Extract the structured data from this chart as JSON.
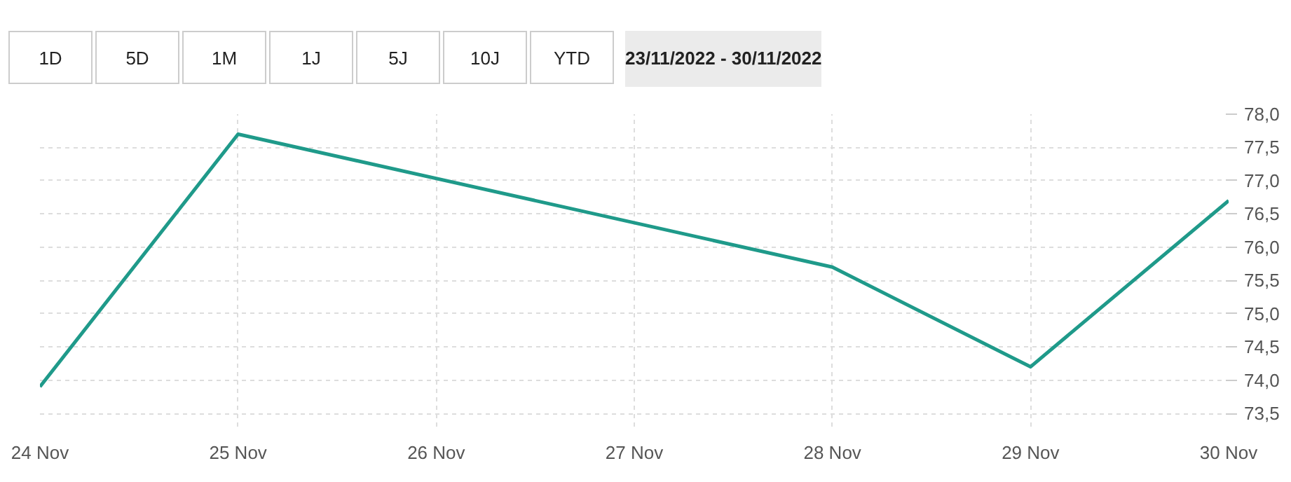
{
  "chart_data": {
    "type": "line",
    "x": [
      "2022-11-24",
      "2022-11-25",
      "2022-11-28",
      "2022-11-29",
      "2022-11-30"
    ],
    "series": [
      {
        "color": "#1f9a8a",
        "values": [
          73.9,
          77.7,
          75.7,
          74.2,
          76.7
        ]
      }
    ],
    "xlim": [
      "2022-11-24",
      "2022-11-30"
    ],
    "xticks": [
      {
        "value": "2022-11-24",
        "label": "24 Nov"
      },
      {
        "value": "2022-11-25",
        "label": "25 Nov"
      },
      {
        "value": "2022-11-26",
        "label": "26 Nov"
      },
      {
        "value": "2022-11-27",
        "label": "27 Nov"
      },
      {
        "value": "2022-11-28",
        "label": "28 Nov"
      },
      {
        "value": "2022-11-29",
        "label": "29 Nov"
      },
      {
        "value": "2022-11-30",
        "label": "30 Nov"
      }
    ],
    "ylim": [
      73.3,
      78.0
    ],
    "yticks": [
      {
        "value": 73.5,
        "label": "73,5"
      },
      {
        "value": 74.0,
        "label": "74,0"
      },
      {
        "value": 74.5,
        "label": "74,5"
      },
      {
        "value": 75.0,
        "label": "75,0"
      },
      {
        "value": 75.5,
        "label": "75,5"
      },
      {
        "value": 76.0,
        "label": "76,0"
      },
      {
        "value": 76.5,
        "label": "76,5"
      },
      {
        "value": 77.0,
        "label": "77,0"
      },
      {
        "value": 77.5,
        "label": "77,5"
      },
      {
        "value": 78.0,
        "label": "78,0"
      }
    ],
    "grid": true,
    "marker": "none",
    "line_style": "solid",
    "annotations": [
      "1D",
      "5D",
      "1M",
      "1J",
      "5J",
      "10J",
      "YTD",
      "23/11/2022 - 30/11/2022"
    ]
  }
}
